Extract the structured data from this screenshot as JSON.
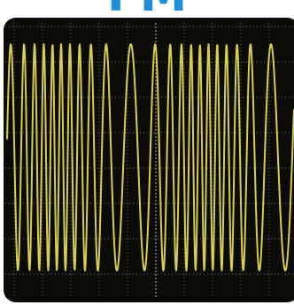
{
  "title": "FM"
}
